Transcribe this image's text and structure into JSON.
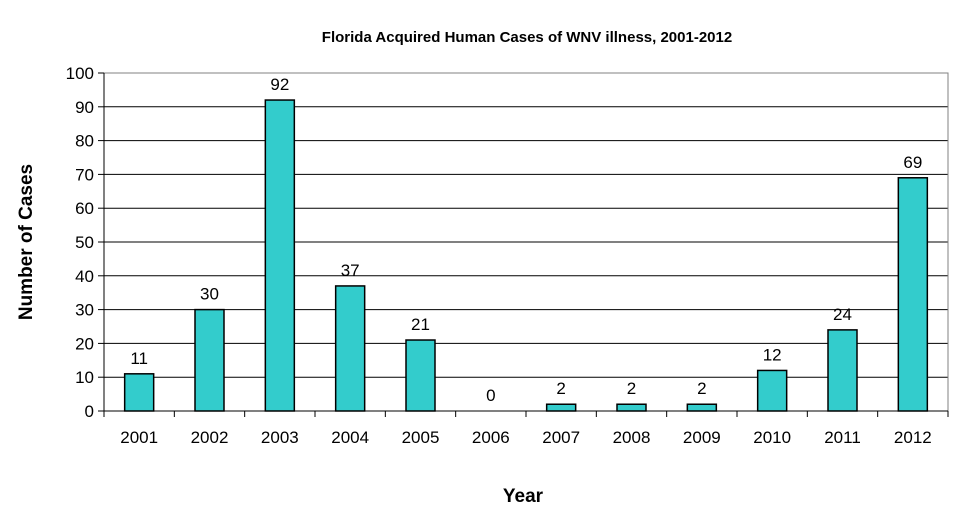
{
  "chart_data": {
    "type": "bar",
    "title": "Florida Acquired Human Cases of WNV illness, 2001-2012",
    "xlabel": "Year",
    "ylabel": "Number of Cases",
    "categories": [
      "2001",
      "2002",
      "2003",
      "2004",
      "2005",
      "2006",
      "2007",
      "2008",
      "2009",
      "2010",
      "2011",
      "2012"
    ],
    "values": [
      11,
      30,
      92,
      37,
      21,
      0,
      2,
      2,
      2,
      12,
      24,
      69
    ],
    "ylim": [
      0,
      100
    ],
    "ytick_step": 10,
    "grid": true,
    "legend": "none",
    "bar_color": "#33CCCC",
    "gridline_color": "#000000"
  }
}
